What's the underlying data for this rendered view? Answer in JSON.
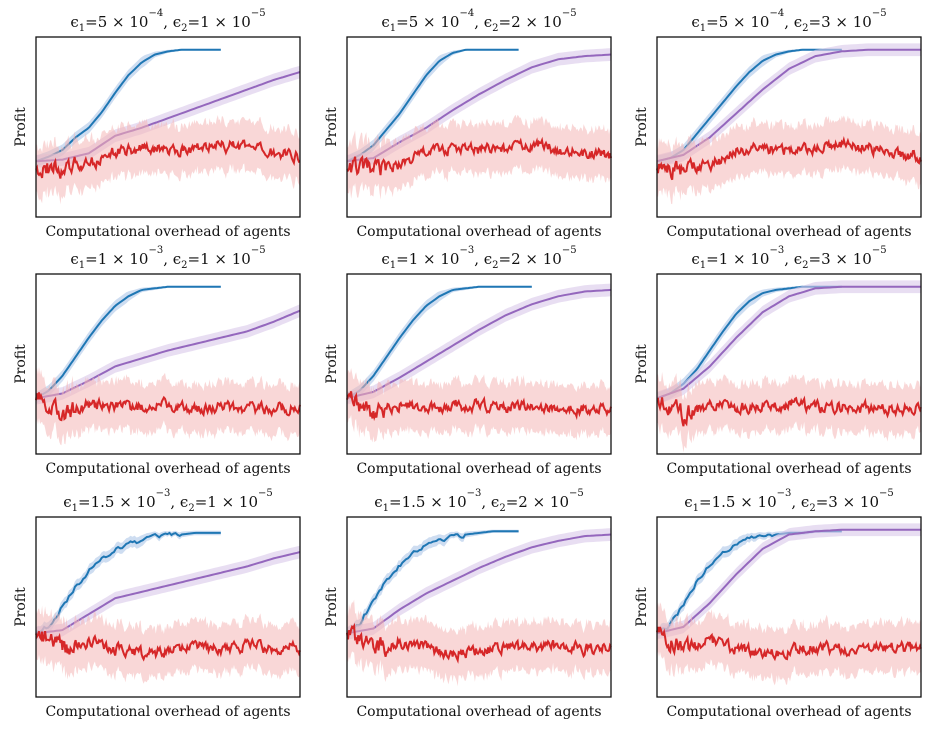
{
  "figure": {
    "xlabel": "Computational overhead of agents",
    "ylabel": "Profit"
  },
  "colors": {
    "blue": "#1f77b4",
    "purple": "#9467bd",
    "red": "#d62728",
    "blue_band": "#aec7e8",
    "purple_band": "#d8c8ea",
    "red_band": "#f4b6b6"
  },
  "chart_data": [
    {
      "type": "line",
      "title": {
        "e1": "5 × 10",
        "e1_exp": "−4",
        "e2": "1 × 10",
        "e2_exp": "−5"
      },
      "xlabel": "Computational overhead of agents",
      "ylabel": "Profit",
      "legend": "none",
      "grid": false,
      "series": [
        {
          "color": "blue",
          "end": 0.7,
          "x": [
            0,
            0.05,
            0.1,
            0.15,
            0.2,
            0.25,
            0.3,
            0.35,
            0.4,
            0.45,
            0.5,
            0.55,
            0.6,
            0.65,
            0.7
          ],
          "y": [
            0.3,
            0.33,
            0.37,
            0.45,
            0.51,
            0.61,
            0.73,
            0.84,
            0.92,
            0.97,
            0.99,
            1.0,
            1.0,
            1.0,
            1.0
          ]
        },
        {
          "color": "purple",
          "end": 1.0,
          "x": [
            0,
            0.1,
            0.2,
            0.3,
            0.4,
            0.5,
            0.6,
            0.7,
            0.8,
            0.9,
            1.0
          ],
          "y": [
            0.3,
            0.31,
            0.35,
            0.46,
            0.51,
            0.57,
            0.63,
            0.69,
            0.75,
            0.81,
            0.86
          ]
        },
        {
          "color": "red",
          "end": 1.0,
          "x": [
            0,
            0.1,
            0.2,
            0.3,
            0.4,
            0.5,
            0.6,
            0.7,
            0.8,
            0.9,
            1.0
          ],
          "y": [
            0.27,
            0.24,
            0.28,
            0.36,
            0.38,
            0.37,
            0.38,
            0.4,
            0.38,
            0.35,
            0.33
          ]
        }
      ]
    },
    {
      "type": "line",
      "title": {
        "e1": "5 × 10",
        "e1_exp": "−4",
        "e2": "2 × 10",
        "e2_exp": "−5"
      },
      "xlabel": "Computational overhead of agents",
      "ylabel": "Profit",
      "legend": "none",
      "grid": false,
      "series": [
        {
          "color": "blue",
          "end": 0.65,
          "x": [
            0,
            0.05,
            0.1,
            0.15,
            0.2,
            0.25,
            0.3,
            0.35,
            0.4,
            0.45,
            0.5,
            0.55,
            0.6,
            0.65
          ],
          "y": [
            0.3,
            0.34,
            0.4,
            0.5,
            0.6,
            0.72,
            0.84,
            0.93,
            0.98,
            1.0,
            1.0,
            1.0,
            1.0,
            1.0
          ]
        },
        {
          "color": "purple",
          "end": 1.0,
          "x": [
            0,
            0.1,
            0.2,
            0.3,
            0.4,
            0.5,
            0.6,
            0.7,
            0.8,
            0.9,
            1.0
          ],
          "y": [
            0.3,
            0.32,
            0.42,
            0.51,
            0.62,
            0.72,
            0.81,
            0.89,
            0.94,
            0.96,
            0.97
          ]
        },
        {
          "color": "red",
          "end": 1.0,
          "x": [
            0,
            0.1,
            0.2,
            0.3,
            0.4,
            0.5,
            0.6,
            0.7,
            0.8,
            0.9,
            1.0
          ],
          "y": [
            0.27,
            0.24,
            0.28,
            0.36,
            0.38,
            0.37,
            0.38,
            0.4,
            0.38,
            0.35,
            0.33
          ]
        }
      ]
    },
    {
      "type": "line",
      "title": {
        "e1": "5 × 10",
        "e1_exp": "−4",
        "e2": "3 × 10",
        "e2_exp": "−5"
      },
      "xlabel": "Computational overhead of agents",
      "ylabel": "Profit",
      "legend": "none",
      "grid": false,
      "series": [
        {
          "color": "blue",
          "end": 0.7,
          "x": [
            0,
            0.05,
            0.1,
            0.15,
            0.2,
            0.25,
            0.3,
            0.35,
            0.4,
            0.45,
            0.5,
            0.55,
            0.6,
            0.65,
            0.7
          ],
          "y": [
            0.3,
            0.32,
            0.37,
            0.47,
            0.57,
            0.67,
            0.77,
            0.86,
            0.93,
            0.97,
            0.99,
            1.0,
            1.0,
            1.0,
            1.0
          ]
        },
        {
          "color": "purple",
          "end": 1.0,
          "x": [
            0,
            0.1,
            0.2,
            0.3,
            0.4,
            0.5,
            0.6,
            0.7,
            0.8,
            0.9,
            1.0
          ],
          "y": [
            0.3,
            0.34,
            0.45,
            0.6,
            0.75,
            0.88,
            0.96,
            0.99,
            1.0,
            1.0,
            1.0
          ]
        },
        {
          "color": "red",
          "end": 1.0,
          "x": [
            0,
            0.1,
            0.2,
            0.3,
            0.4,
            0.5,
            0.6,
            0.7,
            0.8,
            0.9,
            1.0
          ],
          "y": [
            0.27,
            0.24,
            0.28,
            0.36,
            0.38,
            0.37,
            0.38,
            0.4,
            0.38,
            0.35,
            0.33
          ]
        }
      ]
    },
    {
      "type": "line",
      "title": {
        "e1": "1 × 10",
        "e1_exp": "−3",
        "e2": "1 × 10",
        "e2_exp": "−5"
      },
      "xlabel": "Computational overhead of agents",
      "ylabel": "Profit",
      "legend": "none",
      "grid": false,
      "series": [
        {
          "color": "blue",
          "end": 0.7,
          "x": [
            0,
            0.05,
            0.1,
            0.15,
            0.2,
            0.25,
            0.3,
            0.35,
            0.4,
            0.45,
            0.5,
            0.55,
            0.6,
            0.65,
            0.7
          ],
          "y": [
            0.3,
            0.35,
            0.44,
            0.56,
            0.68,
            0.79,
            0.88,
            0.94,
            0.98,
            0.99,
            1.0,
            1.0,
            1.0,
            1.0,
            1.0
          ]
        },
        {
          "color": "purple",
          "end": 1.0,
          "x": [
            0,
            0.1,
            0.2,
            0.3,
            0.4,
            0.5,
            0.6,
            0.7,
            0.8,
            0.9,
            1.0
          ],
          "y": [
            0.3,
            0.33,
            0.41,
            0.5,
            0.55,
            0.6,
            0.64,
            0.68,
            0.72,
            0.78,
            0.85
          ]
        },
        {
          "color": "red",
          "end": 1.0,
          "x": [
            0,
            0.1,
            0.2,
            0.3,
            0.4,
            0.5,
            0.6,
            0.7,
            0.8,
            0.9,
            1.0
          ],
          "y": [
            0.3,
            0.2,
            0.26,
            0.24,
            0.25,
            0.26,
            0.24,
            0.25,
            0.24,
            0.23,
            0.24
          ]
        }
      ]
    },
    {
      "type": "line",
      "title": {
        "e1": "1 × 10",
        "e1_exp": "−3",
        "e2": "2 × 10",
        "e2_exp": "−5"
      },
      "xlabel": "Computational overhead of agents",
      "ylabel": "Profit",
      "legend": "none",
      "grid": false,
      "series": [
        {
          "color": "blue",
          "end": 0.7,
          "x": [
            0,
            0.05,
            0.1,
            0.15,
            0.2,
            0.25,
            0.3,
            0.35,
            0.4,
            0.45,
            0.5,
            0.55,
            0.6,
            0.65,
            0.7
          ],
          "y": [
            0.3,
            0.35,
            0.44,
            0.56,
            0.68,
            0.79,
            0.88,
            0.94,
            0.98,
            0.99,
            1.0,
            1.0,
            1.0,
            1.0,
            1.0
          ]
        },
        {
          "color": "purple",
          "end": 1.0,
          "x": [
            0,
            0.1,
            0.2,
            0.3,
            0.4,
            0.5,
            0.6,
            0.7,
            0.8,
            0.9,
            1.0
          ],
          "y": [
            0.3,
            0.34,
            0.43,
            0.53,
            0.63,
            0.73,
            0.82,
            0.89,
            0.94,
            0.97,
            0.98
          ]
        },
        {
          "color": "red",
          "end": 1.0,
          "x": [
            0,
            0.1,
            0.2,
            0.3,
            0.4,
            0.5,
            0.6,
            0.7,
            0.8,
            0.9,
            1.0
          ],
          "y": [
            0.3,
            0.2,
            0.26,
            0.24,
            0.25,
            0.26,
            0.24,
            0.25,
            0.24,
            0.23,
            0.24
          ]
        }
      ]
    },
    {
      "type": "line",
      "title": {
        "e1": "1 × 10",
        "e1_exp": "−3",
        "e2": "3 × 10",
        "e2_exp": "−5"
      },
      "xlabel": "Computational overhead of agents",
      "ylabel": "Profit",
      "legend": "none",
      "grid": false,
      "series": [
        {
          "color": "blue",
          "end": 0.7,
          "x": [
            0,
            0.05,
            0.1,
            0.15,
            0.2,
            0.25,
            0.3,
            0.35,
            0.4,
            0.45,
            0.5,
            0.55,
            0.6,
            0.65,
            0.7
          ],
          "y": [
            0.3,
            0.33,
            0.39,
            0.48,
            0.6,
            0.72,
            0.83,
            0.91,
            0.96,
            0.98,
            0.99,
            1.0,
            1.0,
            1.0,
            1.0
          ]
        },
        {
          "color": "purple",
          "end": 1.0,
          "x": [
            0,
            0.1,
            0.2,
            0.3,
            0.4,
            0.5,
            0.6,
            0.7,
            0.8,
            0.9,
            1.0
          ],
          "y": [
            0.3,
            0.36,
            0.5,
            0.68,
            0.84,
            0.94,
            0.99,
            1.0,
            1.0,
            1.0,
            1.0
          ]
        },
        {
          "color": "red",
          "end": 1.0,
          "x": [
            0,
            0.1,
            0.2,
            0.3,
            0.4,
            0.5,
            0.6,
            0.7,
            0.8,
            0.9,
            1.0
          ],
          "y": [
            0.3,
            0.2,
            0.26,
            0.24,
            0.25,
            0.26,
            0.24,
            0.25,
            0.24,
            0.23,
            0.24
          ]
        }
      ]
    },
    {
      "type": "line",
      "title": {
        "e1": "1.5 × 10",
        "e1_exp": "−3",
        "e2": "1 × 10",
        "e2_exp": "−5"
      },
      "xlabel": "Computational overhead of agents",
      "ylabel": "Profit",
      "legend": "none",
      "grid": false,
      "series": [
        {
          "color": "blue",
          "end": 0.7,
          "x": [
            0,
            0.05,
            0.1,
            0.15,
            0.2,
            0.25,
            0.3,
            0.35,
            0.4,
            0.45,
            0.5,
            0.55,
            0.6,
            0.65,
            0.7
          ],
          "y": [
            0.35,
            0.4,
            0.52,
            0.64,
            0.74,
            0.82,
            0.88,
            0.91,
            0.93,
            0.95,
            0.96,
            0.97,
            0.98,
            0.98,
            0.98
          ]
        },
        {
          "color": "purple",
          "end": 1.0,
          "x": [
            0,
            0.1,
            0.2,
            0.3,
            0.4,
            0.5,
            0.6,
            0.7,
            0.8,
            0.9,
            1.0
          ],
          "y": [
            0.35,
            0.37,
            0.47,
            0.57,
            0.61,
            0.65,
            0.69,
            0.73,
            0.77,
            0.82,
            0.86
          ]
        },
        {
          "color": "red",
          "end": 1.0,
          "x": [
            0,
            0.1,
            0.2,
            0.3,
            0.4,
            0.5,
            0.6,
            0.7,
            0.8,
            0.9,
            1.0
          ],
          "y": [
            0.35,
            0.25,
            0.3,
            0.25,
            0.22,
            0.24,
            0.26,
            0.25,
            0.27,
            0.25,
            0.26
          ]
        }
      ]
    },
    {
      "type": "line",
      "title": {
        "e1": "1.5 × 10",
        "e1_exp": "−3",
        "e2": "2 × 10",
        "e2_exp": "−5"
      },
      "xlabel": "Computational overhead of agents",
      "ylabel": "Profit",
      "legend": "none",
      "grid": false,
      "series": [
        {
          "color": "blue",
          "end": 0.65,
          "x": [
            0,
            0.05,
            0.1,
            0.15,
            0.2,
            0.25,
            0.3,
            0.35,
            0.4,
            0.45,
            0.5,
            0.55,
            0.6,
            0.65
          ],
          "y": [
            0.35,
            0.42,
            0.55,
            0.68,
            0.78,
            0.86,
            0.91,
            0.94,
            0.96,
            0.97,
            0.98,
            0.99,
            0.99,
            0.99
          ]
        },
        {
          "color": "purple",
          "end": 1.0,
          "x": [
            0,
            0.1,
            0.2,
            0.3,
            0.4,
            0.5,
            0.6,
            0.7,
            0.8,
            0.9,
            1.0
          ],
          "y": [
            0.35,
            0.38,
            0.5,
            0.6,
            0.68,
            0.76,
            0.83,
            0.89,
            0.93,
            0.96,
            0.97
          ]
        },
        {
          "color": "red",
          "end": 1.0,
          "x": [
            0,
            0.1,
            0.2,
            0.3,
            0.4,
            0.5,
            0.6,
            0.7,
            0.8,
            0.9,
            1.0
          ],
          "y": [
            0.35,
            0.25,
            0.3,
            0.25,
            0.22,
            0.24,
            0.26,
            0.25,
            0.27,
            0.25,
            0.26
          ]
        }
      ]
    },
    {
      "type": "line",
      "title": {
        "e1": "1.5 × 10",
        "e1_exp": "−3",
        "e2": "3 × 10",
        "e2_exp": "−5"
      },
      "xlabel": "Computational overhead of agents",
      "ylabel": "Profit",
      "legend": "none",
      "grid": false,
      "series": [
        {
          "color": "blue",
          "end": 0.7,
          "x": [
            0,
            0.05,
            0.1,
            0.15,
            0.2,
            0.25,
            0.3,
            0.35,
            0.4,
            0.45,
            0.5,
            0.55,
            0.6,
            0.65,
            0.7
          ],
          "y": [
            0.35,
            0.4,
            0.53,
            0.67,
            0.78,
            0.86,
            0.91,
            0.94,
            0.96,
            0.97,
            0.98,
            0.98,
            0.99,
            0.99,
            0.99
          ]
        },
        {
          "color": "purple",
          "end": 1.0,
          "x": [
            0,
            0.1,
            0.2,
            0.3,
            0.4,
            0.5,
            0.6,
            0.7,
            0.8,
            0.9,
            1.0
          ],
          "y": [
            0.35,
            0.39,
            0.54,
            0.72,
            0.88,
            0.97,
            0.99,
            1.0,
            1.0,
            1.0,
            1.0
          ]
        },
        {
          "color": "red",
          "end": 1.0,
          "x": [
            0,
            0.1,
            0.2,
            0.3,
            0.4,
            0.5,
            0.6,
            0.7,
            0.8,
            0.9,
            1.0
          ],
          "y": [
            0.35,
            0.25,
            0.3,
            0.25,
            0.22,
            0.24,
            0.26,
            0.25,
            0.27,
            0.25,
            0.26
          ]
        }
      ]
    }
  ]
}
